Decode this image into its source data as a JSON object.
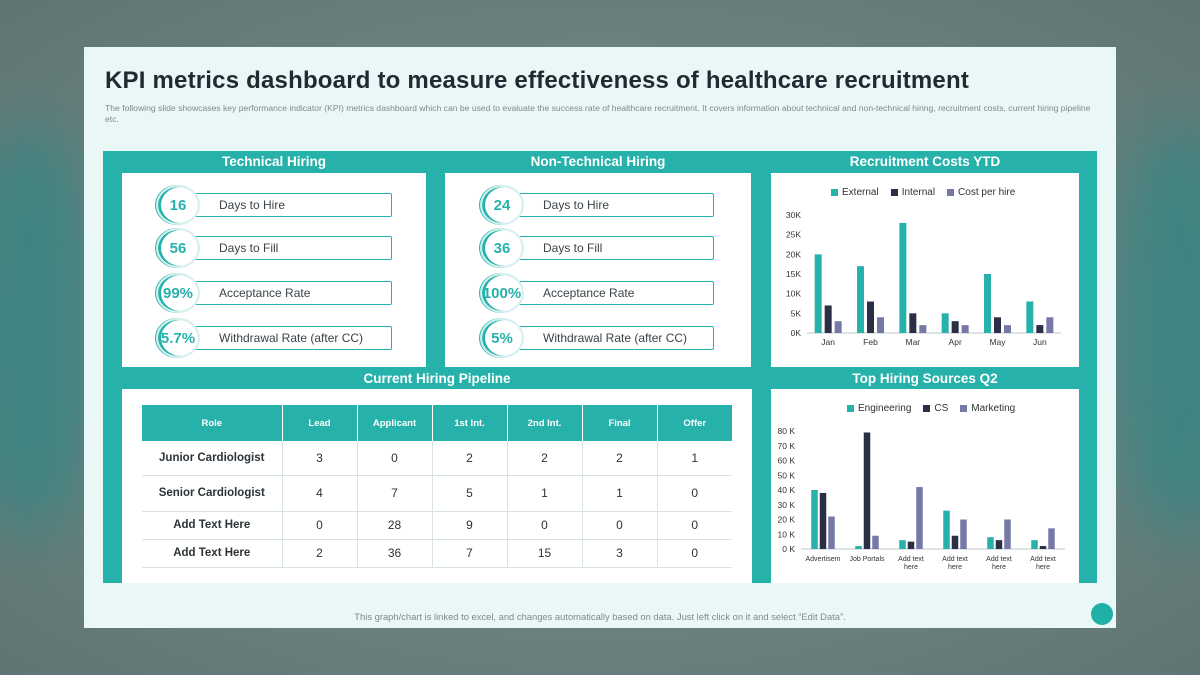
{
  "title": "KPI metrics dashboard to measure effectiveness of healthcare recruitment",
  "subtitle": "The following slide showcases key performance indicator (KPI) metrics dashboard which can be used to evaluate the success rate of healthcare recruitment. It covers information about technical and non-technical hiring, recruitment costs, current hiring pipeline etc.",
  "footer": "This graph/chart is linked to excel,  and changes automatically based on data. Just left click on it and select “Edit Data”.",
  "colors": {
    "teal": "#26b2ab",
    "navy": "#2b2f45",
    "purple": "#7479a6"
  },
  "technical": {
    "title": "Technical Hiring",
    "kpis": [
      {
        "value": "16",
        "label": "Days to Hire"
      },
      {
        "value": "56",
        "label": "Days to Fill"
      },
      {
        "value": "99%",
        "label": "Acceptance Rate"
      },
      {
        "value": "5.7%",
        "label": "Withdrawal Rate (after CC)"
      }
    ]
  },
  "non_technical": {
    "title": "Non-Technical Hiring",
    "kpis": [
      {
        "value": "24",
        "label": "Days to Hire"
      },
      {
        "value": "36",
        "label": "Days to Fill"
      },
      {
        "value": "100%",
        "label": "Acceptance Rate"
      },
      {
        "value": "5%",
        "label": "Withdrawal Rate (after CC)"
      }
    ]
  },
  "pipeline": {
    "title": "Current Hiring Pipeline",
    "headers": [
      "Role",
      "Lead",
      "Applicant",
      "1st Int.",
      "2nd Int.",
      "Final",
      "Offer"
    ],
    "rows": [
      [
        "Junior Cardiologist",
        "3",
        "0",
        "2",
        "2",
        "2",
        "1"
      ],
      [
        "Senior Cardiologist",
        "4",
        "7",
        "5",
        "1",
        "1",
        "0"
      ],
      [
        "Add Text Here",
        "0",
        "28",
        "9",
        "0",
        "0",
        "0"
      ],
      [
        "Add Text Here",
        "2",
        "36",
        "7",
        "15",
        "3",
        "0"
      ]
    ]
  },
  "chart_data": [
    {
      "type": "bar",
      "title": "Recruitment Costs YTD",
      "categories": [
        "Jan",
        "Feb",
        "Mar",
        "Apr",
        "May",
        "Jun"
      ],
      "series": [
        {
          "name": "External",
          "values": [
            20000,
            17000,
            28000,
            5000,
            15000,
            8000
          ]
        },
        {
          "name": "Internal",
          "values": [
            7000,
            8000,
            5000,
            3000,
            4000,
            2000
          ]
        },
        {
          "name": "Cost per hire",
          "values": [
            3000,
            4000,
            2000,
            2000,
            2000,
            4000
          ]
        }
      ],
      "ylim": [
        0,
        30000
      ],
      "yticks": [
        "0K",
        "5K",
        "10K",
        "15K",
        "20K",
        "25K",
        "30K"
      ],
      "legend": "top"
    },
    {
      "type": "bar",
      "title": "Top Hiring Sources Q2",
      "categories": [
        "Advertisem",
        "Job Portals",
        "Add text here",
        "Add text here",
        "Add text here",
        "Add text here"
      ],
      "series": [
        {
          "name": "Engineering",
          "values": [
            40000,
            2000,
            6000,
            26000,
            8000,
            6000
          ]
        },
        {
          "name": "CS",
          "values": [
            38000,
            79000,
            5000,
            9000,
            6000,
            2000
          ]
        },
        {
          "name": "Marketing",
          "values": [
            22000,
            9000,
            42000,
            20000,
            20000,
            14000
          ]
        }
      ],
      "ylim": [
        0,
        80000
      ],
      "yticks": [
        "0 K",
        "10 K",
        "20 K",
        "30 K",
        "40 K",
        "50 K",
        "60 K",
        "70 K",
        "80 K"
      ],
      "legend": "top"
    }
  ]
}
